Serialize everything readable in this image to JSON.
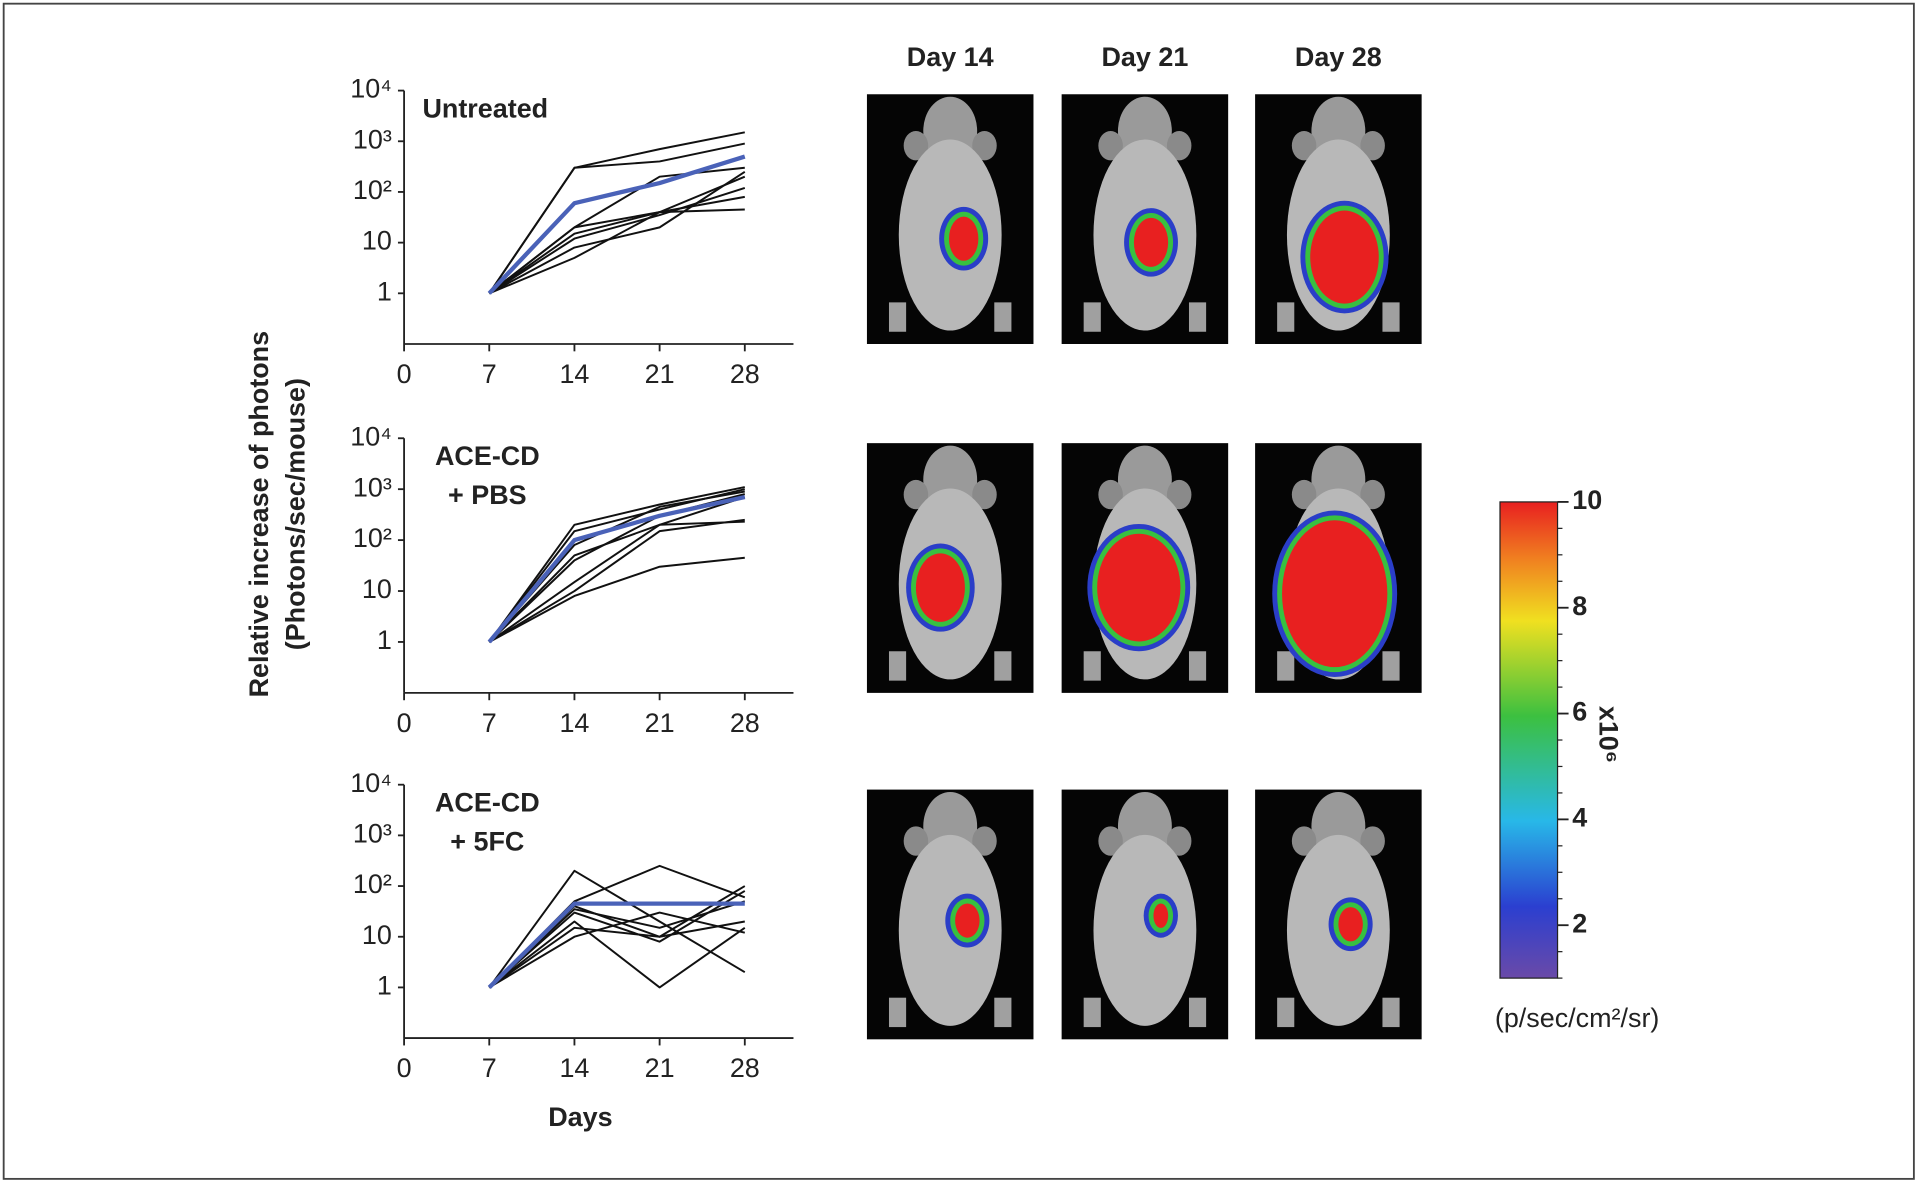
{
  "chart_data": [
    {
      "type": "line",
      "title_lines": [
        "Untreated"
      ],
      "log_y": true,
      "x": [
        7,
        14,
        21,
        28
      ],
      "xlim": [
        0,
        32
      ],
      "xticks": [
        0,
        7,
        14,
        21,
        28
      ],
      "ylim": [
        0.1,
        10000
      ],
      "yticks": [
        1,
        10,
        {
          "value": 100,
          "label": "10²"
        },
        {
          "value": 1000,
          "label": "10³"
        },
        {
          "value": 10000,
          "label": "10⁴"
        }
      ],
      "series": [
        {
          "color": "#111111",
          "values": [
            1,
            300,
            700,
            1500
          ]
        },
        {
          "color": "#111111",
          "values": [
            1,
            300,
            400,
            900
          ]
        },
        {
          "color": "#111111",
          "values": [
            1,
            20,
            200,
            300
          ]
        },
        {
          "color": "#111111",
          "values": [
            1,
            15,
            40,
            200
          ]
        },
        {
          "color": "#111111",
          "values": [
            1,
            12,
            35,
            120
          ]
        },
        {
          "color": "#111111",
          "values": [
            1,
            8,
            20,
            250
          ]
        },
        {
          "color": "#111111",
          "values": [
            1,
            5,
            40,
            45
          ]
        },
        {
          "color": "#111111",
          "values": [
            1,
            20,
            40,
            80
          ]
        },
        {
          "color": "#4a62b8",
          "values": [
            1,
            60,
            150,
            500
          ]
        }
      ]
    },
    {
      "type": "line",
      "title_lines": [
        "ACE-CD",
        "+ PBS"
      ],
      "log_y": true,
      "x": [
        7,
        14,
        21,
        28
      ],
      "xlim": [
        0,
        32
      ],
      "xticks": [
        0,
        7,
        14,
        21,
        28
      ],
      "ylim": [
        0.1,
        10000
      ],
      "yticks": [
        1,
        10,
        {
          "value": 100,
          "label": "10²"
        },
        {
          "value": 1000,
          "label": "10³"
        },
        {
          "value": 10000,
          "label": "10⁴"
        }
      ],
      "series": [
        {
          "color": "#111111",
          "values": [
            1,
            200,
            500,
            1100
          ]
        },
        {
          "color": "#111111",
          "values": [
            1,
            150,
            400,
            1000
          ]
        },
        {
          "color": "#111111",
          "values": [
            1,
            80,
            450,
            900
          ]
        },
        {
          "color": "#111111",
          "values": [
            1,
            40,
            300,
            800
          ]
        },
        {
          "color": "#111111",
          "values": [
            1,
            10,
            150,
            250
          ]
        },
        {
          "color": "#111111",
          "values": [
            1,
            8,
            30,
            45
          ]
        },
        {
          "color": "#111111",
          "values": [
            1,
            15,
            200,
            230
          ]
        },
        {
          "color": "#111111",
          "values": [
            1,
            50,
            200,
            700
          ]
        },
        {
          "color": "#4a62b8",
          "values": [
            1,
            100,
            300,
            700
          ]
        }
      ]
    },
    {
      "type": "line",
      "title_lines": [
        "ACE-CD",
        "+ 5FC"
      ],
      "log_y": true,
      "x": [
        7,
        14,
        21,
        28
      ],
      "xlim": [
        0,
        32
      ],
      "xticks": [
        0,
        7,
        14,
        21,
        28
      ],
      "ylim": [
        0.1,
        10000
      ],
      "yticks": [
        1,
        10,
        {
          "value": 100,
          "label": "10²"
        },
        {
          "value": 1000,
          "label": "10³"
        },
        {
          "value": 10000,
          "label": "10⁴"
        }
      ],
      "series": [
        {
          "color": "#111111",
          "values": [
            1,
            200,
            20,
            2
          ]
        },
        {
          "color": "#111111",
          "values": [
            1,
            50,
            250,
            60
          ]
        },
        {
          "color": "#111111",
          "values": [
            1,
            40,
            10,
            100
          ]
        },
        {
          "color": "#111111",
          "values": [
            1,
            30,
            8,
            80
          ]
        },
        {
          "color": "#111111",
          "values": [
            1,
            20,
            1,
            15
          ]
        },
        {
          "color": "#111111",
          "values": [
            1,
            10,
            30,
            12
          ]
        },
        {
          "color": "#111111",
          "values": [
            1,
            15,
            10,
            20
          ]
        },
        {
          "color": "#111111",
          "values": [
            1,
            35,
            15,
            50
          ]
        },
        {
          "color": "#4a62b8",
          "values": [
            1,
            45,
            45,
            45
          ]
        }
      ]
    }
  ],
  "y_label": [
    "Relative increase of photons",
    "(Photons/sec/mouse)"
  ],
  "x_label": "Days",
  "image_columns": [
    "Day 14",
    "Day 21",
    "Day 28"
  ],
  "colorbar": {
    "lim": [
      1,
      10
    ],
    "ticks": [
      2,
      4,
      6,
      8,
      10
    ],
    "multiplier": "x10⁶",
    "unit": "(p/sec/cm²/sr)"
  }
}
